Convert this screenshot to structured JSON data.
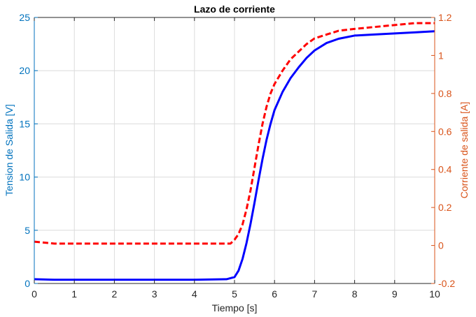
{
  "chart_data": {
    "type": "line",
    "title": "Lazo de corriente",
    "xlabel": "Tiempo [s]",
    "ylabel_left": "Tension de Salida [V]",
    "ylabel_right": "Corriente de salida [A]",
    "xlim": [
      0,
      10
    ],
    "ylim_left": [
      0,
      25
    ],
    "ylim_right": [
      -0.2,
      1.2
    ],
    "x_ticks": [
      "0",
      "1",
      "2",
      "3",
      "4",
      "5",
      "6",
      "7",
      "8",
      "9",
      "10"
    ],
    "y_left_ticks": [
      "0",
      "5",
      "10",
      "15",
      "20",
      "25"
    ],
    "y_right_ticks": [
      "-0.2",
      "0",
      "0.2",
      "0.4",
      "0.6",
      "0.8",
      "1",
      "1.2"
    ],
    "grid": true,
    "colors": {
      "left_axis": "#0072BD",
      "right_axis": "#D95319",
      "grid": "#DCDCDC"
    },
    "series": [
      {
        "axis": "left",
        "color": "#0000FF",
        "style": "solid",
        "x": [
          0,
          0.5,
          1,
          2,
          3,
          4,
          4.8,
          5.0,
          5.1,
          5.2,
          5.3,
          5.4,
          5.5,
          5.6,
          5.7,
          5.8,
          5.9,
          6.0,
          6.2,
          6.4,
          6.6,
          6.8,
          7.0,
          7.3,
          7.6,
          8.0,
          8.5,
          9.0,
          9.5,
          10
        ],
        "y": [
          0.4,
          0.35,
          0.35,
          0.35,
          0.35,
          0.35,
          0.4,
          0.6,
          1.2,
          2.3,
          3.8,
          5.6,
          7.6,
          9.7,
          11.7,
          13.5,
          15.0,
          16.3,
          18.0,
          19.3,
          20.3,
          21.2,
          21.9,
          22.6,
          23.0,
          23.3,
          23.4,
          23.5,
          23.6,
          23.7
        ]
      },
      {
        "axis": "right",
        "color": "#FF0000",
        "style": "dashed",
        "x": [
          0,
          0.5,
          1,
          1.5,
          2,
          2.5,
          3,
          3.5,
          4,
          4.5,
          4.9,
          5.0,
          5.1,
          5.2,
          5.3,
          5.4,
          5.5,
          5.6,
          5.7,
          5.8,
          5.9,
          6.0,
          6.2,
          6.4,
          6.6,
          6.8,
          7.0,
          7.3,
          7.6,
          8.0,
          8.5,
          9.0,
          9.5,
          10
        ],
        "y": [
          0.02,
          0.01,
          0.01,
          0.01,
          0.01,
          0.01,
          0.01,
          0.01,
          0.01,
          0.01,
          0.01,
          0.03,
          0.06,
          0.11,
          0.19,
          0.29,
          0.41,
          0.53,
          0.64,
          0.73,
          0.8,
          0.85,
          0.92,
          0.98,
          1.02,
          1.06,
          1.09,
          1.11,
          1.13,
          1.14,
          1.15,
          1.16,
          1.17,
          1.17
        ]
      }
    ]
  }
}
